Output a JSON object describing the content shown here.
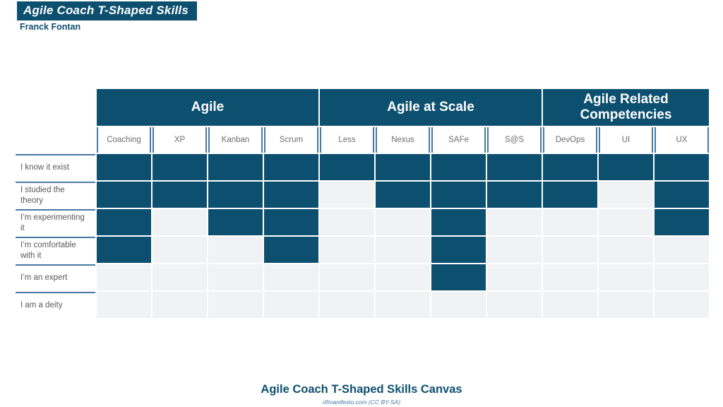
{
  "header": {
    "title": "Agile Coach T-Shaped Skills",
    "author": "Franck Fontan"
  },
  "footer": {
    "title": "Agile Coach T-Shaped Skills Canvas",
    "credit": "rtfmanifesto.com (CC BY-SA)"
  },
  "colors": {
    "primary": "#0d4f6f",
    "empty_cell": "#f1f2f3",
    "separator": "#4779a3",
    "label_text": "#58595b",
    "subheader_text": "#6b6c6e"
  },
  "chart_data": {
    "type": "heatmap",
    "title": "Agile Coach T-Shaped Skills",
    "column_groups": [
      {
        "label": "Agile",
        "columns": [
          "Coaching",
          "XP",
          "Kanban",
          "Scrum"
        ]
      },
      {
        "label": "Agile at Scale",
        "columns": [
          "Less",
          "Nexus",
          "SAFe",
          "S@S"
        ]
      },
      {
        "label": "Agile Related Competencies",
        "columns": [
          "DevOps",
          "UI",
          "UX"
        ]
      }
    ],
    "rows": [
      "I know it exist",
      "I studied the theory",
      "I’m experimenting it",
      "I’m comfortable with it",
      "I’m an expert",
      "I am a deity"
    ],
    "matrix": [
      [
        1,
        1,
        1,
        1,
        1,
        1,
        1,
        1,
        1,
        1,
        1
      ],
      [
        1,
        1,
        1,
        1,
        0,
        1,
        1,
        1,
        1,
        0,
        1
      ],
      [
        1,
        0,
        1,
        1,
        0,
        0,
        1,
        0,
        0,
        0,
        1
      ],
      [
        1,
        0,
        0,
        1,
        0,
        0,
        1,
        0,
        0,
        0,
        0
      ],
      [
        0,
        0,
        0,
        0,
        0,
        0,
        1,
        0,
        0,
        0,
        0
      ],
      [
        0,
        0,
        0,
        0,
        0,
        0,
        0,
        0,
        0,
        0,
        0
      ]
    ],
    "cell_on_color": "#0d4f6f",
    "cell_off_color": "#f1f2f3",
    "grid": true,
    "legend_position": "none"
  }
}
